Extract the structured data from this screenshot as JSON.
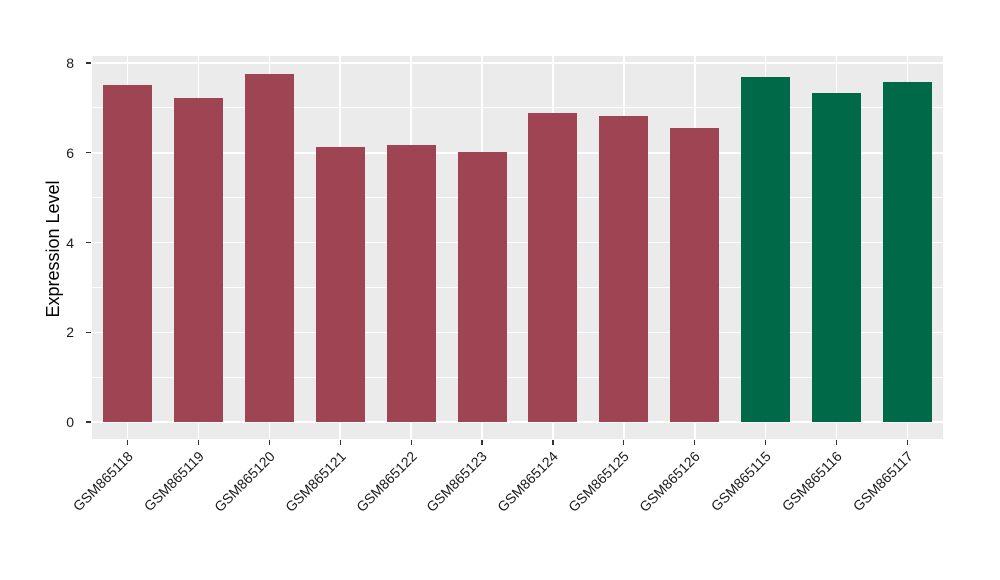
{
  "figure": {
    "background": "#FFFFFF",
    "panel_background": "#EBEBEB",
    "grid_color": "#FFFFFF",
    "tick_mark_color": "#333333",
    "tick_label_color": "#1A1A1A",
    "axis_title_color": "#000000"
  },
  "chart_data": {
    "type": "bar",
    "title": "",
    "xlabel": "",
    "ylabel": "Expression Level",
    "categories": [
      "GSM865118",
      "GSM865119",
      "GSM865120",
      "GSM865121",
      "GSM865122",
      "GSM865123",
      "GSM865124",
      "GSM865125",
      "GSM865126",
      "GSM865115",
      "GSM865116",
      "GSM865117"
    ],
    "values": [
      7.5,
      7.23,
      7.76,
      6.13,
      6.17,
      6.01,
      6.89,
      6.82,
      6.56,
      7.69,
      7.33,
      7.57
    ],
    "bar_colors": [
      "#9E4452",
      "#9E4452",
      "#9E4452",
      "#9E4452",
      "#9E4452",
      "#9E4452",
      "#9E4452",
      "#9E4452",
      "#9E4452",
      "#006948",
      "#006948",
      "#006948"
    ],
    "group_colors": {
      "maroon": "#9E4452",
      "green": "#006948"
    },
    "y_ticks": [
      0,
      2,
      4,
      6,
      8
    ],
    "y_tick_labels": [
      "0",
      "2",
      "4",
      "6",
      "8"
    ],
    "y_minor_ticks": [
      1,
      3,
      5,
      7
    ],
    "ylim": [
      -0.39,
      8.13
    ],
    "grid": true,
    "legend": false,
    "x_tick_rotation_deg": 45
  }
}
